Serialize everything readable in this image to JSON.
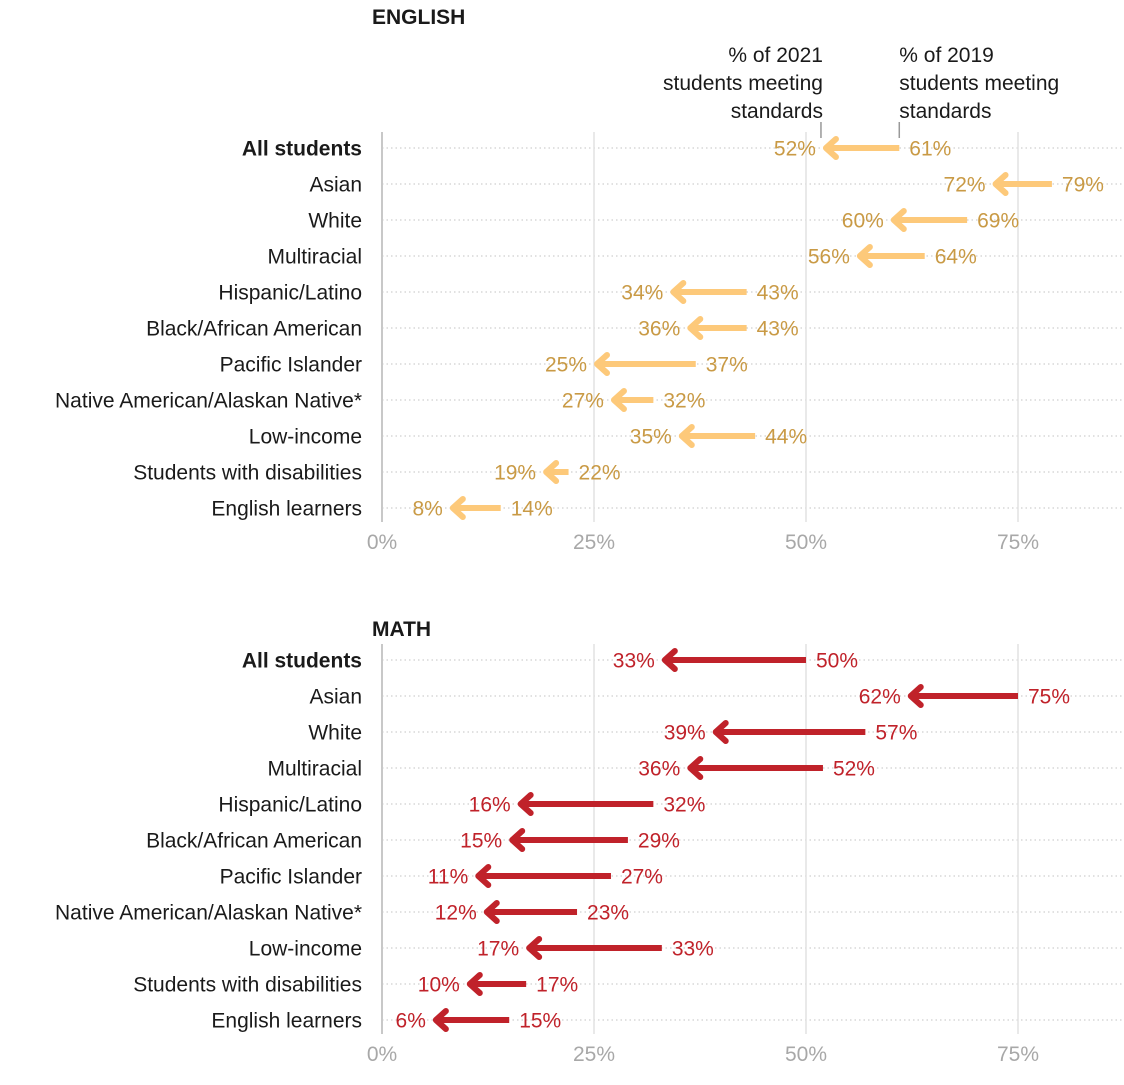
{
  "chart_data": [
    {
      "type": "arrow-dumbbell",
      "title": "ENGLISH",
      "annotation_2021": [
        "% of 2021",
        "students meeting",
        "standards"
      ],
      "annotation_2019": [
        "% of 2019",
        "students meeting",
        "standards"
      ],
      "color_arrow": "#fdc97a",
      "color_label": "#c99a45",
      "xlim": [
        0,
        87
      ],
      "xticks": [
        0,
        25,
        50,
        75
      ],
      "xtick_labels": [
        "0%",
        "25%",
        "50%",
        "75%"
      ],
      "categories": [
        "All students",
        "Asian",
        "White",
        "Multiracial",
        "Hispanic/Latino",
        "Black/African American",
        "Pacific Islander",
        "Native American/Alaskan Native*",
        "Low-income",
        "Students with disabilities",
        "English learners"
      ],
      "series": [
        {
          "name": "2019",
          "values": [
            61,
            79,
            69,
            64,
            43,
            43,
            37,
            32,
            44,
            22,
            14
          ],
          "labels": [
            "61%",
            "79%",
            "69%",
            "64%",
            "43%",
            "43%",
            "37%",
            "32%",
            "44%",
            "22%",
            "14%"
          ]
        },
        {
          "name": "2021",
          "values": [
            52,
            72,
            60,
            56,
            34,
            36,
            25,
            27,
            35,
            19,
            8
          ],
          "labels": [
            "52%",
            "72%",
            "60%",
            "56%",
            "34%",
            "36%",
            "25%",
            "27%",
            "35%",
            "19%",
            "8%"
          ]
        }
      ]
    },
    {
      "type": "arrow-dumbbell",
      "title": "MATH",
      "color_arrow": "#c0222a",
      "color_label": "#c0222a",
      "xlim": [
        0,
        87
      ],
      "xticks": [
        0,
        25,
        50,
        75
      ],
      "xtick_labels": [
        "0%",
        "25%",
        "50%",
        "75%"
      ],
      "categories": [
        "All students",
        "Asian",
        "White",
        "Multiracial",
        "Hispanic/Latino",
        "Black/African American",
        "Pacific Islander",
        "Native American/Alaskan Native*",
        "Low-income",
        "Students with disabilities",
        "English learners"
      ],
      "series": [
        {
          "name": "2019",
          "values": [
            50,
            75,
            57,
            52,
            32,
            29,
            27,
            23,
            33,
            17,
            15
          ],
          "labels": [
            "50%",
            "75%",
            "57%",
            "52%",
            "32%",
            "29%",
            "27%",
            "23%",
            "33%",
            "17%",
            "15%"
          ]
        },
        {
          "name": "2021",
          "values": [
            33,
            62,
            39,
            36,
            16,
            15,
            11,
            12,
            17,
            10,
            6
          ],
          "labels": [
            "33%",
            "62%",
            "39%",
            "36%",
            "16%",
            "15%",
            "11%",
            "12%",
            "17%",
            "10%",
            "6%"
          ]
        }
      ]
    }
  ]
}
